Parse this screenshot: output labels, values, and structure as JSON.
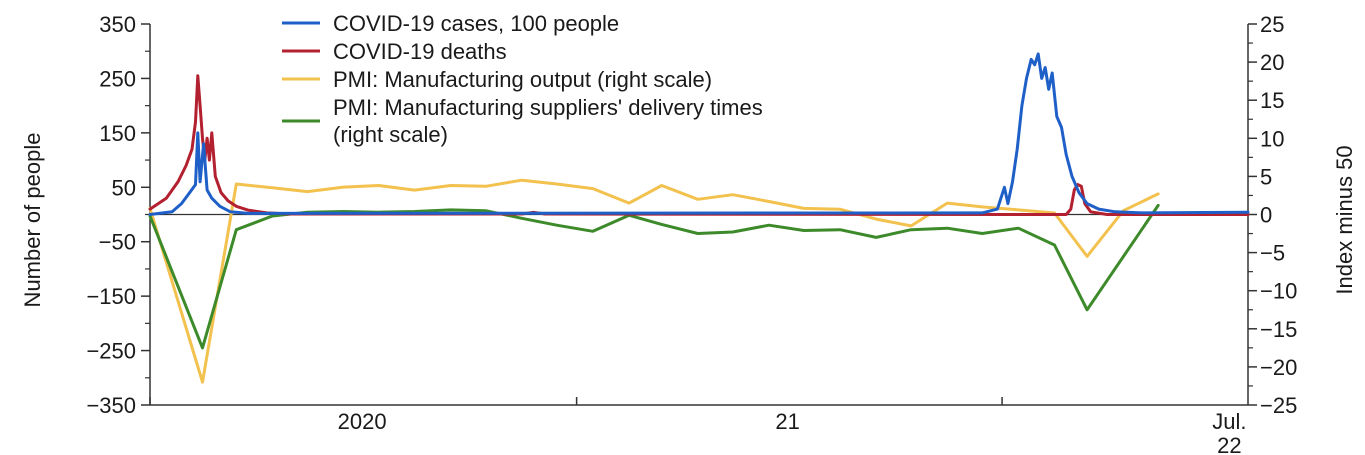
{
  "chart_data": {
    "type": "line",
    "title": "",
    "x_range": [
      "2020-01-01",
      "2022-07-31"
    ],
    "x_ticks": [
      {
        "label": "2020",
        "date": "2020-07-01"
      },
      {
        "label": "21",
        "date": "2021-07-01"
      },
      {
        "label": "Jul.",
        "label2": "22",
        "date": "2022-07-15"
      }
    ],
    "left_axis": {
      "label": "Number of people",
      "range": [
        -350,
        350
      ],
      "ticks": [
        "350",
        "250",
        "150",
        "50",
        "−50",
        "−150",
        "−250",
        "−350"
      ],
      "tick_values": [
        350,
        250,
        150,
        50,
        -50,
        -150,
        -250,
        -350
      ]
    },
    "right_axis": {
      "label": "Index minus 50",
      "range": [
        -25,
        25
      ],
      "ticks": [
        "25",
        "20",
        "15",
        "10",
        "5",
        "0",
        "−5",
        "−10",
        "−15",
        "−20",
        "−25"
      ],
      "tick_values": [
        25,
        20,
        15,
        10,
        5,
        0,
        -5,
        -10,
        -15,
        -20,
        -25
      ]
    },
    "legend": {
      "position": "top-center",
      "entries": [
        {
          "text": "COVID-19 cases, 100 people",
          "color": "#1f5fc8"
        },
        {
          "text": "COVID-19 deaths",
          "color": "#b3202f"
        },
        {
          "text": "PMI: Manufacturing output (right scale)",
          "color": "#f2c14e"
        },
        {
          "text": "PMI: Manufacturing suppliers' delivery times",
          "text2": "(right scale)",
          "color": "#3d8a2a"
        }
      ]
    },
    "series": [
      {
        "name": "COVID-19 cases, 100 people",
        "axis": "left",
        "color": "#1f5fc8",
        "stroke_width": 3,
        "points": [
          [
            "2020-01-01",
            0
          ],
          [
            "2020-01-20",
            5
          ],
          [
            "2020-01-28",
            20
          ],
          [
            "2020-02-04",
            40
          ],
          [
            "2020-02-09",
            55
          ],
          [
            "2020-02-11",
            150
          ],
          [
            "2020-02-13",
            60
          ],
          [
            "2020-02-16",
            130
          ],
          [
            "2020-02-19",
            45
          ],
          [
            "2020-02-23",
            30
          ],
          [
            "2020-03-01",
            15
          ],
          [
            "2020-03-10",
            5
          ],
          [
            "2020-03-25",
            2
          ],
          [
            "2021-12-15",
            3
          ],
          [
            "2021-12-28",
            10
          ],
          [
            "2022-01-03",
            50
          ],
          [
            "2022-01-06",
            20
          ],
          [
            "2022-01-10",
            60
          ],
          [
            "2022-01-14",
            120
          ],
          [
            "2022-01-18",
            200
          ],
          [
            "2022-01-22",
            250
          ],
          [
            "2022-01-26",
            285
          ],
          [
            "2022-01-29",
            275
          ],
          [
            "2022-02-01",
            295
          ],
          [
            "2022-02-04",
            250
          ],
          [
            "2022-02-07",
            270
          ],
          [
            "2022-02-10",
            230
          ],
          [
            "2022-02-13",
            260
          ],
          [
            "2022-02-17",
            180
          ],
          [
            "2022-02-21",
            160
          ],
          [
            "2022-02-25",
            110
          ],
          [
            "2022-03-02",
            70
          ],
          [
            "2022-03-08",
            40
          ],
          [
            "2022-03-15",
            20
          ],
          [
            "2022-03-25",
            10
          ],
          [
            "2022-04-08",
            5
          ],
          [
            "2022-05-01",
            3
          ],
          [
            "2022-07-31",
            4
          ]
        ]
      },
      {
        "name": "COVID-19 deaths",
        "axis": "left",
        "color": "#b3202f",
        "stroke_width": 3,
        "points": [
          [
            "2020-01-01",
            10
          ],
          [
            "2020-01-15",
            30
          ],
          [
            "2020-01-25",
            60
          ],
          [
            "2020-02-01",
            90
          ],
          [
            "2020-02-06",
            120
          ],
          [
            "2020-02-09",
            170
          ],
          [
            "2020-02-11",
            255
          ],
          [
            "2020-02-13",
            200
          ],
          [
            "2020-02-15",
            140
          ],
          [
            "2020-02-17",
            100
          ],
          [
            "2020-02-19",
            140
          ],
          [
            "2020-02-21",
            100
          ],
          [
            "2020-02-23",
            150
          ],
          [
            "2020-02-26",
            70
          ],
          [
            "2020-03-02",
            40
          ],
          [
            "2020-03-08",
            25
          ],
          [
            "2020-03-15",
            15
          ],
          [
            "2020-03-25",
            8
          ],
          [
            "2020-04-10",
            3
          ],
          [
            "2020-05-01",
            1
          ],
          [
            "2020-11-15",
            1
          ],
          [
            "2020-11-25",
            4
          ],
          [
            "2020-12-05",
            1
          ],
          [
            "2022-02-25",
            0
          ],
          [
            "2022-03-01",
            10
          ],
          [
            "2022-03-04",
            45
          ],
          [
            "2022-03-07",
            55
          ],
          [
            "2022-03-10",
            52
          ],
          [
            "2022-03-13",
            20
          ],
          [
            "2022-03-18",
            5
          ],
          [
            "2022-04-01",
            0
          ],
          [
            "2022-07-31",
            0
          ]
        ]
      },
      {
        "name": "PMI: Manufacturing output (right scale)",
        "axis": "right",
        "color": "#f2c14e",
        "stroke_width": 3,
        "points": [
          [
            "2020-01-01",
            0.8
          ],
          [
            "2020-02-15",
            -22
          ],
          [
            "2020-03-15",
            4
          ],
          [
            "2020-04-15",
            3.5
          ],
          [
            "2020-05-15",
            3
          ],
          [
            "2020-06-15",
            3.6
          ],
          [
            "2020-07-15",
            3.8
          ],
          [
            "2020-08-15",
            3.2
          ],
          [
            "2020-09-15",
            3.8
          ],
          [
            "2020-10-15",
            3.7
          ],
          [
            "2020-11-15",
            4.5
          ],
          [
            "2020-12-15",
            4
          ],
          [
            "2021-01-15",
            3.4
          ],
          [
            "2021-02-15",
            1.5
          ],
          [
            "2021-03-15",
            3.8
          ],
          [
            "2021-04-15",
            2
          ],
          [
            "2021-05-15",
            2.6
          ],
          [
            "2021-06-15",
            1.7
          ],
          [
            "2021-07-15",
            0.8
          ],
          [
            "2021-08-15",
            0.7
          ],
          [
            "2021-09-15",
            -0.6
          ],
          [
            "2021-10-15",
            -1.5
          ],
          [
            "2021-11-15",
            1.5
          ],
          [
            "2021-12-15",
            1
          ],
          [
            "2022-01-15",
            0.6
          ],
          [
            "2022-02-15",
            0.2
          ],
          [
            "2022-03-15",
            -5.5
          ],
          [
            "2022-04-15",
            0.5
          ],
          [
            "2022-05-15",
            2.7
          ]
        ]
      },
      {
        "name": "PMI: Manufacturing suppliers' delivery times (right scale)",
        "axis": "right",
        "color": "#3d8a2a",
        "stroke_width": 3,
        "points": [
          [
            "2020-01-01",
            -0.2
          ],
          [
            "2020-02-15",
            -17.5
          ],
          [
            "2020-03-15",
            -2
          ],
          [
            "2020-04-15",
            -0.2
          ],
          [
            "2020-05-15",
            0.3
          ],
          [
            "2020-06-15",
            0.4
          ],
          [
            "2020-07-15",
            0.3
          ],
          [
            "2020-08-15",
            0.4
          ],
          [
            "2020-09-15",
            0.6
          ],
          [
            "2020-10-15",
            0.5
          ],
          [
            "2020-11-15",
            -0.5
          ],
          [
            "2020-12-15",
            -1.4
          ],
          [
            "2021-01-15",
            -2.2
          ],
          [
            "2021-02-15",
            -0.1
          ],
          [
            "2021-03-15",
            -1.3
          ],
          [
            "2021-04-15",
            -2.5
          ],
          [
            "2021-05-15",
            -2.3
          ],
          [
            "2021-06-15",
            -1.4
          ],
          [
            "2021-07-15",
            -2.1
          ],
          [
            "2021-08-15",
            -2.0
          ],
          [
            "2021-09-15",
            -3.0
          ],
          [
            "2021-10-15",
            -2.0
          ],
          [
            "2021-11-15",
            -1.8
          ],
          [
            "2021-12-15",
            -2.5
          ],
          [
            "2022-01-15",
            -1.8
          ],
          [
            "2022-02-15",
            -4
          ],
          [
            "2022-03-15",
            -12.5
          ],
          [
            "2022-05-15",
            1.2
          ]
        ]
      }
    ]
  }
}
